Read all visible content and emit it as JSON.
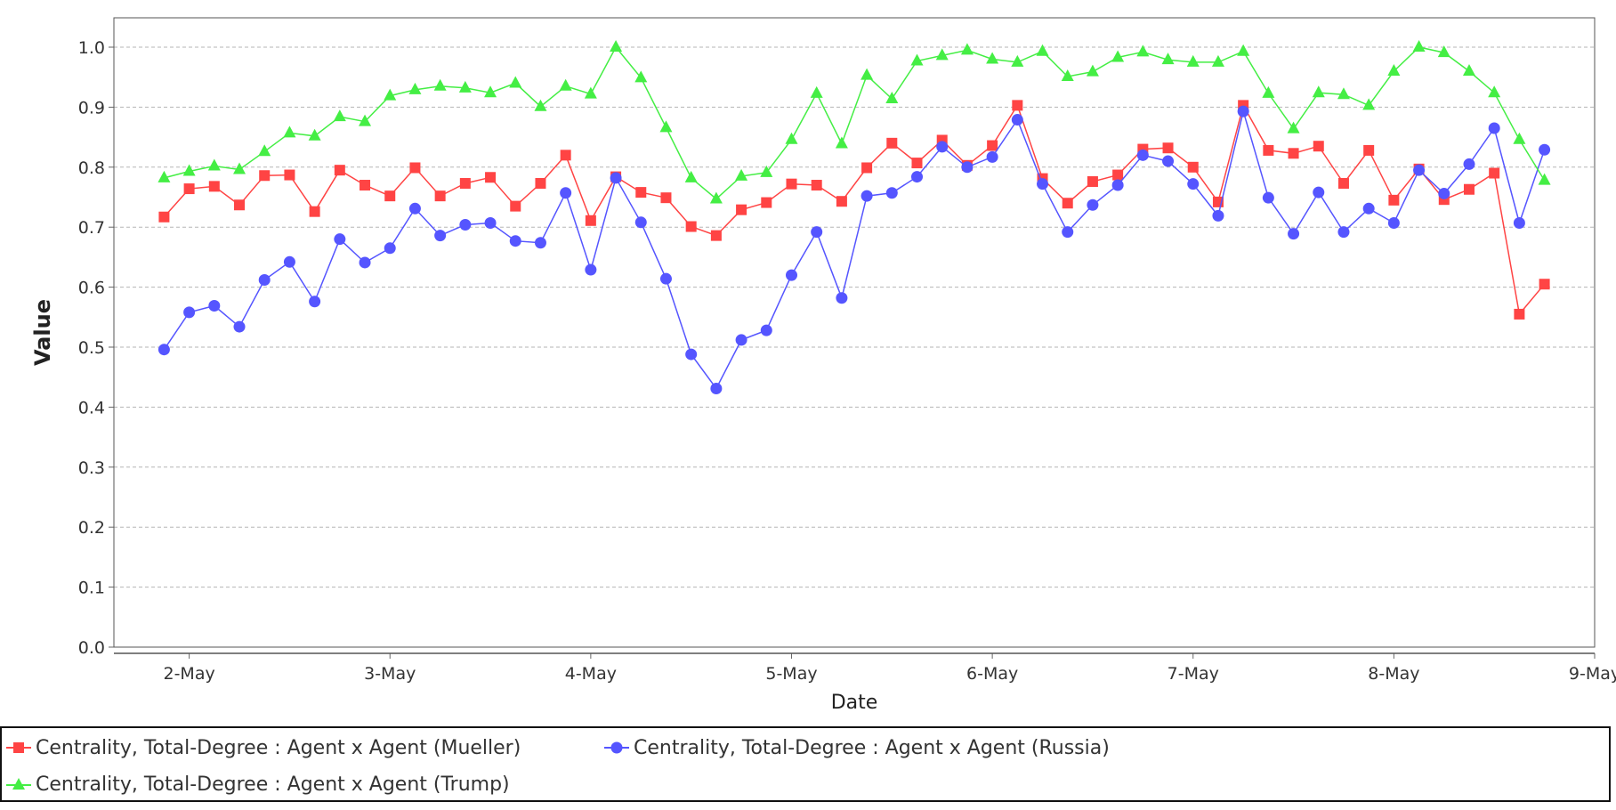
{
  "chart_data": {
    "type": "line",
    "title": "",
    "xlabel": "Date",
    "ylabel": "Value",
    "ylim": [
      0.0,
      1.0
    ],
    "xlim": [
      "2018-05-01 15:00",
      "2018-05-09 00:00"
    ],
    "yticks": [
      "0.0",
      "0.1",
      "0.2",
      "0.3",
      "0.4",
      "0.5",
      "0.6",
      "0.7",
      "0.8",
      "0.9",
      "1.0"
    ],
    "xticks": [
      "2-May",
      "3-May",
      "4-May",
      "5-May",
      "6-May",
      "7-May",
      "8-May",
      "9-May"
    ],
    "grid": true,
    "legend_position": "bottom",
    "x": [
      "2018-05-01 21:00",
      "2018-05-02 00:00",
      "2018-05-02 03:00",
      "2018-05-02 06:00",
      "2018-05-02 09:00",
      "2018-05-02 12:00",
      "2018-05-02 15:00",
      "2018-05-02 18:00",
      "2018-05-02 21:00",
      "2018-05-03 00:00",
      "2018-05-03 03:00",
      "2018-05-03 06:00",
      "2018-05-03 09:00",
      "2018-05-03 12:00",
      "2018-05-03 15:00",
      "2018-05-03 18:00",
      "2018-05-03 21:00",
      "2018-05-04 00:00",
      "2018-05-04 03:00",
      "2018-05-04 06:00",
      "2018-05-04 09:00",
      "2018-05-04 12:00",
      "2018-05-04 15:00",
      "2018-05-04 18:00",
      "2018-05-04 21:00",
      "2018-05-05 00:00",
      "2018-05-05 03:00",
      "2018-05-05 06:00",
      "2018-05-05 09:00",
      "2018-05-05 12:00",
      "2018-05-05 15:00",
      "2018-05-05 18:00",
      "2018-05-05 21:00",
      "2018-05-06 00:00",
      "2018-05-06 03:00",
      "2018-05-06 06:00",
      "2018-05-06 09:00",
      "2018-05-06 12:00",
      "2018-05-06 15:00",
      "2018-05-06 18:00",
      "2018-05-06 21:00",
      "2018-05-07 00:00",
      "2018-05-07 03:00",
      "2018-05-07 06:00",
      "2018-05-07 09:00",
      "2018-05-07 12:00",
      "2018-05-07 15:00",
      "2018-05-07 18:00",
      "2018-05-07 21:00",
      "2018-05-08 00:00",
      "2018-05-08 03:00",
      "2018-05-08 06:00",
      "2018-05-08 09:00",
      "2018-05-08 12:00",
      "2018-05-08 15:00",
      "2018-05-08 18:00"
    ],
    "series": [
      {
        "name": "Centrality, Total-Degree : Agent x Agent (Mueller)",
        "color": "#ff4444",
        "marker": "square",
        "values": [
          0.717,
          0.764,
          0.768,
          0.737,
          0.786,
          0.787,
          0.726,
          0.795,
          0.77,
          0.752,
          0.799,
          0.752,
          0.773,
          0.783,
          0.735,
          0.773,
          0.82,
          0.711,
          0.784,
          0.758,
          0.749,
          0.701,
          0.686,
          0.729,
          0.741,
          0.772,
          0.77,
          0.743,
          0.799,
          0.84,
          0.807,
          0.845,
          0.803,
          0.836,
          0.903,
          0.781,
          0.74,
          0.776,
          0.787,
          0.83,
          0.832,
          0.8,
          0.742,
          0.903,
          0.828,
          0.823,
          0.835,
          0.773,
          0.828,
          0.745,
          0.797,
          0.746,
          0.763,
          0.79,
          0.555,
          0.605
        ]
      },
      {
        "name": "Centrality, Total-Degree : Agent x Agent (Russia)",
        "color": "#5555ff",
        "marker": "circle",
        "values": [
          0.496,
          0.558,
          0.569,
          0.534,
          0.612,
          0.642,
          0.576,
          0.68,
          0.641,
          0.665,
          0.731,
          0.686,
          0.704,
          0.707,
          0.677,
          0.674,
          0.757,
          0.629,
          0.782,
          0.708,
          0.614,
          0.488,
          0.431,
          0.512,
          0.528,
          0.62,
          0.692,
          0.582,
          0.752,
          0.757,
          0.784,
          0.834,
          0.8,
          0.817,
          0.879,
          0.772,
          0.692,
          0.737,
          0.77,
          0.82,
          0.81,
          0.772,
          0.719,
          0.893,
          0.749,
          0.689,
          0.758,
          0.692,
          0.731,
          0.707,
          0.795,
          0.756,
          0.805,
          0.865,
          0.707,
          0.829
        ]
      },
      {
        "name": "Centrality, Total-Degree : Agent x Agent (Trump)",
        "color": "#44ee44",
        "marker": "triangle",
        "values": [
          0.782,
          0.793,
          0.802,
          0.796,
          0.826,
          0.857,
          0.852,
          0.884,
          0.876,
          0.919,
          0.929,
          0.935,
          0.932,
          0.924,
          0.94,
          0.901,
          0.935,
          0.922,
          1.0,
          0.949,
          0.866,
          0.782,
          0.747,
          0.785,
          0.791,
          0.846,
          0.923,
          0.839,
          0.953,
          0.914,
          0.977,
          0.986,
          0.995,
          0.98,
          0.975,
          0.993,
          0.951,
          0.959,
          0.983,
          0.992,
          0.979,
          0.975,
          0.975,
          0.993,
          0.923,
          0.864,
          0.924,
          0.921,
          0.903,
          0.96,
          1.0,
          0.991,
          0.96,
          0.924,
          0.846,
          0.778
        ]
      }
    ]
  }
}
